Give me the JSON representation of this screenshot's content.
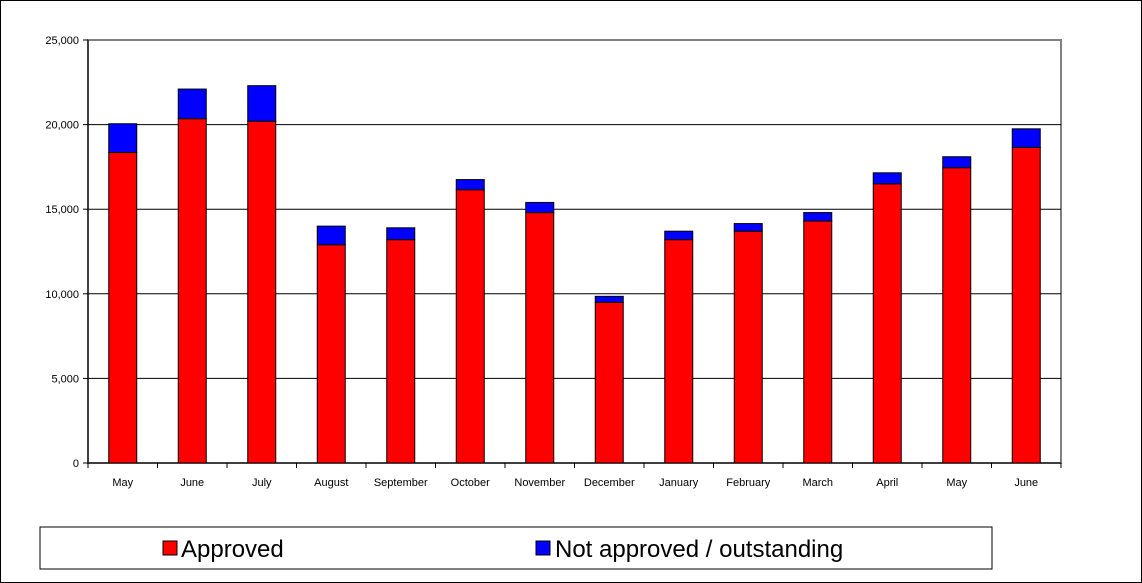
{
  "chart_data": {
    "type": "bar",
    "stacked": true,
    "title": "",
    "xlabel": "",
    "ylabel": "",
    "ylim": [
      0,
      25000
    ],
    "yticks": [
      0,
      5000,
      10000,
      15000,
      20000,
      25000
    ],
    "ytick_labels": [
      "0",
      "5,000",
      "10,000",
      "15,000",
      "20,000",
      "25,000"
    ],
    "categories": [
      "May",
      "June",
      "July",
      "August",
      "September",
      "October",
      "November",
      "December",
      "January",
      "February",
      "March",
      "April",
      "May",
      "June"
    ],
    "series": [
      {
        "name": "Approved",
        "color": "#ff0000",
        "values": [
          18350,
          20350,
          20200,
          12900,
          13200,
          16150,
          14800,
          9500,
          13200,
          13700,
          14300,
          16500,
          17450,
          18650
        ]
      },
      {
        "name": "Not approved / outstanding",
        "color": "#0000ff",
        "values": [
          1700,
          1750,
          2100,
          1100,
          700,
          600,
          600,
          350,
          500,
          450,
          500,
          650,
          650,
          1100
        ]
      }
    ],
    "grid": true,
    "legend_position": "bottom"
  }
}
